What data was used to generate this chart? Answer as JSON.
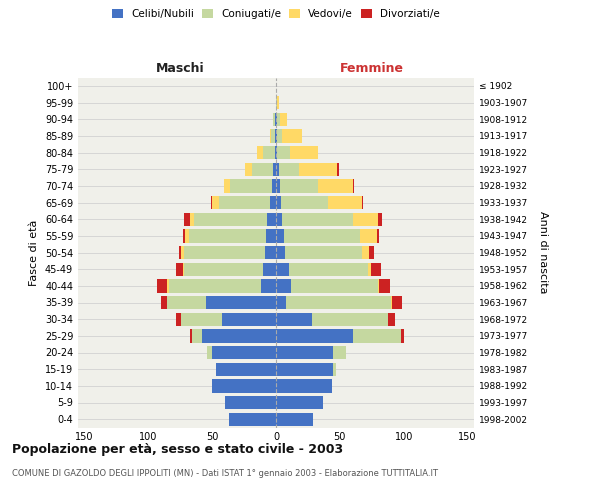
{
  "age_groups": [
    "0-4",
    "5-9",
    "10-14",
    "15-19",
    "20-24",
    "25-29",
    "30-34",
    "35-39",
    "40-44",
    "45-49",
    "50-54",
    "55-59",
    "60-64",
    "65-69",
    "70-74",
    "75-79",
    "80-84",
    "85-89",
    "90-94",
    "95-99",
    "100+"
  ],
  "birth_years": [
    "1998-2002",
    "1993-1997",
    "1988-1992",
    "1983-1987",
    "1978-1982",
    "1973-1977",
    "1968-1972",
    "1963-1967",
    "1958-1962",
    "1953-1957",
    "1948-1952",
    "1943-1947",
    "1938-1942",
    "1933-1937",
    "1928-1932",
    "1923-1927",
    "1918-1922",
    "1913-1917",
    "1908-1912",
    "1903-1907",
    "≤ 1902"
  ],
  "maschi": {
    "celibi": [
      37,
      40,
      50,
      47,
      50,
      58,
      42,
      55,
      12,
      10,
      9,
      8,
      7,
      5,
      3,
      2,
      1,
      1,
      1,
      0,
      0
    ],
    "coniugati": [
      0,
      0,
      0,
      0,
      4,
      8,
      32,
      30,
      72,
      62,
      63,
      60,
      57,
      40,
      33,
      17,
      9,
      3,
      1,
      0,
      0
    ],
    "vedovi": [
      0,
      0,
      0,
      0,
      0,
      0,
      0,
      0,
      1,
      1,
      2,
      3,
      3,
      5,
      5,
      5,
      5,
      1,
      0,
      0,
      0
    ],
    "divorziati": [
      0,
      0,
      0,
      0,
      0,
      1,
      4,
      5,
      8,
      5,
      2,
      2,
      5,
      1,
      0,
      0,
      0,
      0,
      0,
      0,
      0
    ]
  },
  "femmine": {
    "nubili": [
      29,
      37,
      44,
      45,
      45,
      60,
      28,
      8,
      12,
      10,
      7,
      6,
      5,
      4,
      3,
      2,
      1,
      1,
      1,
      0,
      0
    ],
    "coniugate": [
      0,
      0,
      0,
      2,
      10,
      38,
      60,
      82,
      68,
      62,
      60,
      60,
      55,
      37,
      30,
      16,
      10,
      4,
      2,
      1,
      0
    ],
    "vedove": [
      0,
      0,
      0,
      0,
      0,
      0,
      0,
      1,
      1,
      2,
      6,
      13,
      20,
      26,
      27,
      30,
      22,
      15,
      6,
      1,
      0
    ],
    "divorziate": [
      0,
      0,
      0,
      0,
      0,
      2,
      5,
      8,
      8,
      8,
      4,
      2,
      3,
      1,
      1,
      1,
      0,
      0,
      0,
      0,
      0
    ]
  },
  "colors": {
    "celibi_nubili": "#4472c4",
    "coniugati": "#c5d8a0",
    "vedovi": "#ffd966",
    "divorziati": "#cc2222"
  },
  "legend_labels": [
    "Celibi/Nubili",
    "Coniugati/e",
    "Vedovi/e",
    "Divorziati/e"
  ],
  "title": "Popolazione per età, sesso e stato civile - 2003",
  "subtitle": "COMUNE DI GAZOLDO DEGLI IPPOLITI (MN) - Dati ISTAT 1° gennaio 2003 - Elaborazione TUTTITALIA.IT",
  "ylabel_left": "Fasce di età",
  "ylabel_right": "Anni di nascita",
  "xlabel_maschi": "Maschi",
  "xlabel_femmine": "Femmine",
  "xlim": 155,
  "bg_color": "#ffffff",
  "plot_bg": "#f0f0ea"
}
